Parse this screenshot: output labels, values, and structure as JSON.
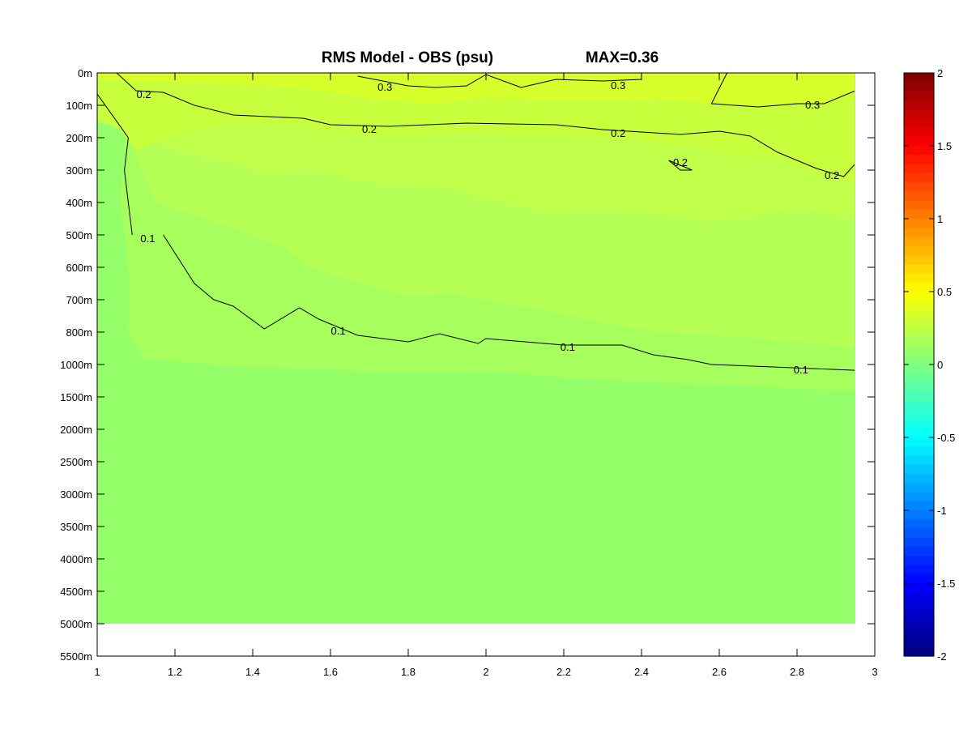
{
  "chart_data": {
    "type": "heatmap",
    "title": "RMS Model - OBS (psu)",
    "max_label": "MAX=0.36",
    "xlabel": "",
    "ylabel": "",
    "xlim": [
      1,
      3
    ],
    "x_ticks": [
      "1",
      "1.2",
      "1.4",
      "1.6",
      "1.8",
      "2",
      "2.2",
      "2.4",
      "2.6",
      "2.8",
      "3"
    ],
    "y_tick_labels": [
      "0m",
      "100m",
      "200m",
      "300m",
      "400m",
      "500m",
      "600m",
      "700m",
      "800m",
      "1000m",
      "1500m",
      "2000m",
      "2500m",
      "3000m",
      "3500m",
      "4000m",
      "4500m",
      "5000m",
      "5500m"
    ],
    "data_x_range": [
      1,
      2.95
    ],
    "data_depth_range": [
      "0m",
      "5000m"
    ],
    "colorbar": {
      "range": [
        -2,
        2
      ],
      "tick_labels": [
        "2",
        "1.5",
        "1",
        "0.5",
        "0",
        "-0.5",
        "-1",
        "-1.5",
        "-2"
      ],
      "colormap": "jet"
    },
    "regions": [
      {
        "level": 0.3,
        "color": "#d6ff2b"
      },
      {
        "level": 0.25,
        "color": "#c8ff3c"
      },
      {
        "level": 0.2,
        "color": "#c0ff4a"
      },
      {
        "level": 0.15,
        "color": "#b6ff55"
      },
      {
        "level": 0.1,
        "color": "#a6ff5d"
      },
      {
        "level": 0.05,
        "color": "#95ff6a"
      }
    ],
    "contours": [
      {
        "level": 0.3,
        "points": [
          [
            1.67,
            0.1
          ],
          [
            1.8,
            0.4
          ],
          [
            1.87,
            0.45
          ],
          [
            1.95,
            0.4
          ],
          [
            2.0,
            0.05
          ],
          [
            2.09,
            0.45
          ],
          [
            2.18,
            0.2
          ],
          [
            2.3,
            0.25
          ],
          [
            2.4,
            0.2
          ]
        ],
        "labels": [
          {
            "text": "0.3",
            "x": 1.74,
            "y": 0.42
          },
          {
            "text": "0.3",
            "x": 2.34,
            "y": 0.38
          }
        ]
      },
      {
        "level": 0.3,
        "points": [
          [
            2.62,
            0.0
          ],
          [
            2.58,
            0.95
          ],
          [
            2.7,
            1.05
          ],
          [
            2.8,
            0.95
          ],
          [
            2.87,
            0.95
          ],
          [
            2.95,
            0.55
          ]
        ],
        "labels": [
          {
            "text": "0.3",
            "x": 2.84,
            "y": 0.98
          }
        ]
      },
      {
        "level": 0.2,
        "points": [
          [
            1.05,
            0.0
          ],
          [
            1.1,
            0.55
          ],
          [
            1.17,
            0.6
          ],
          [
            1.25,
            1.0
          ],
          [
            1.35,
            1.3
          ],
          [
            1.53,
            1.4
          ],
          [
            1.6,
            1.6
          ],
          [
            1.75,
            1.65
          ],
          [
            1.95,
            1.55
          ],
          [
            2.18,
            1.6
          ],
          [
            2.3,
            1.75
          ],
          [
            2.5,
            1.9
          ],
          [
            2.6,
            1.8
          ],
          [
            2.68,
            1.95
          ],
          [
            2.75,
            2.45
          ],
          [
            2.85,
            2.95
          ],
          [
            2.92,
            3.2
          ],
          [
            2.95,
            2.8
          ]
        ],
        "labels": [
          {
            "text": "0.2",
            "x": 1.12,
            "y": 0.65
          },
          {
            "text": "0.2",
            "x": 1.7,
            "y": 1.72
          },
          {
            "text": "0.2",
            "x": 2.34,
            "y": 1.85
          },
          {
            "text": "0.2",
            "x": 2.89,
            "y": 3.15
          }
        ]
      },
      {
        "level": 0.2,
        "points": [
          [
            2.47,
            2.7
          ],
          [
            2.5,
            3.0
          ],
          [
            2.53,
            3.0
          ],
          [
            2.47,
            2.7
          ]
        ],
        "labels": [
          {
            "text": "0.2",
            "x": 2.5,
            "y": 2.75
          }
        ]
      },
      {
        "level": 0.1,
        "points": [
          [
            1.0,
            0.65
          ],
          [
            1.08,
            2.0
          ],
          [
            1.07,
            3.0
          ],
          [
            1.09,
            5.0
          ]
        ],
        "labels": []
      },
      {
        "level": 0.1,
        "points": [
          [
            1.17,
            5.0
          ],
          [
            1.25,
            6.5
          ],
          [
            1.3,
            7.0
          ],
          [
            1.35,
            7.2
          ],
          [
            1.43,
            7.9
          ],
          [
            1.52,
            7.25
          ],
          [
            1.57,
            7.6
          ],
          [
            1.67,
            8.1
          ],
          [
            1.8,
            8.3
          ],
          [
            1.88,
            8.05
          ],
          [
            1.98,
            8.35
          ],
          [
            2.0,
            8.2
          ],
          [
            2.2,
            8.4
          ],
          [
            2.35,
            8.4
          ],
          [
            2.43,
            8.7
          ],
          [
            2.52,
            8.85
          ],
          [
            2.58,
            9.0
          ],
          [
            2.75,
            9.08
          ],
          [
            2.95,
            9.18
          ]
        ],
        "labels": [
          {
            "text": "0.1",
            "x": 1.13,
            "y": 5.1
          },
          {
            "text": "0.1",
            "x": 1.62,
            "y": 7.95
          },
          {
            "text": "0.1",
            "x": 2.21,
            "y": 8.45
          },
          {
            "text": "0.1",
            "x": 2.81,
            "y": 9.15
          }
        ]
      }
    ]
  }
}
